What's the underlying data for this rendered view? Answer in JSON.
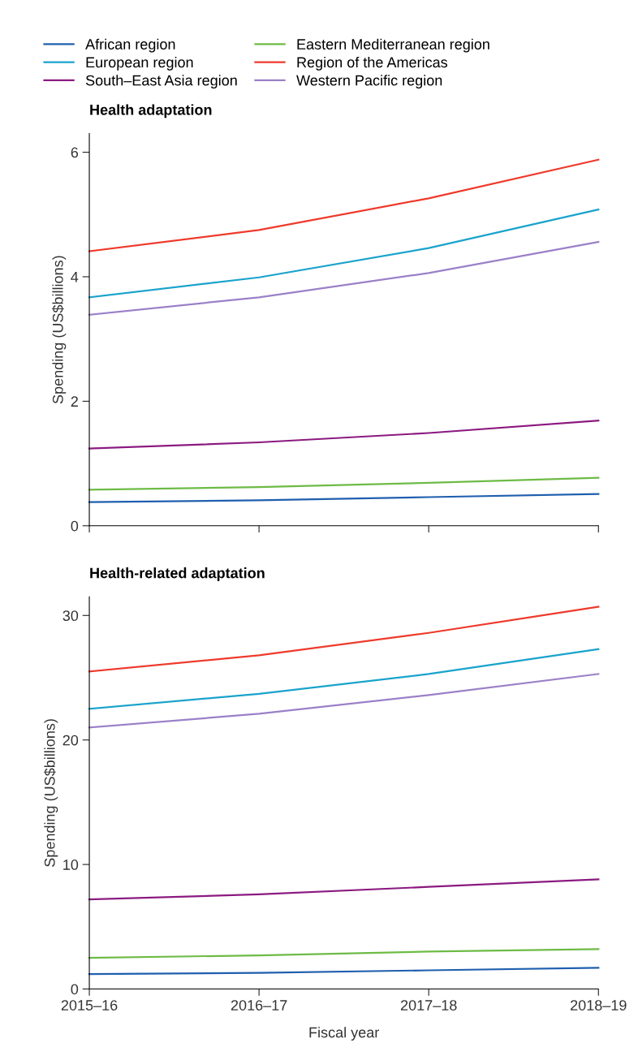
{
  "chart_data": [
    {
      "type": "line",
      "title": "Health adaptation",
      "ylabel": "Spending (US$billions)",
      "categories": [
        null,
        null,
        null,
        null
      ],
      "ylim": [
        0,
        6.3
      ],
      "yticks": [
        0,
        2,
        4,
        6
      ],
      "legend": "top",
      "grid": false,
      "series": [
        {
          "name": "African region",
          "color": "#1f5fae",
          "values": [
            0.38,
            0.41,
            0.46,
            0.51
          ]
        },
        {
          "name": "Eastern Mediterranean region",
          "color": "#6dbb45",
          "values": [
            0.58,
            0.62,
            0.69,
            0.77
          ]
        },
        {
          "name": "European region",
          "color": "#1aa3cc",
          "values": [
            3.67,
            3.99,
            4.46,
            5.08
          ]
        },
        {
          "name": "Region of the Americas",
          "color": "#ee3a2c",
          "values": [
            4.41,
            4.75,
            5.26,
            5.88
          ]
        },
        {
          "name": "South–East Asia region",
          "color": "#8b1a80",
          "values": [
            1.24,
            1.34,
            1.49,
            1.69
          ]
        },
        {
          "name": "Western Pacific region",
          "color": "#9b80c8",
          "values": [
            3.39,
            3.67,
            4.06,
            4.56
          ]
        }
      ]
    },
    {
      "type": "line",
      "title": "Health-related adaptation",
      "ylabel": "Spending (US$billions)",
      "xlabel": "Fiscal year",
      "categories": [
        "2015–16",
        "2016–17",
        "2017–18",
        "2018–19"
      ],
      "ylim": [
        0,
        31.5
      ],
      "yticks": [
        0,
        10,
        20,
        30
      ],
      "grid": false,
      "series": [
        {
          "color": "#1f5fae",
          "values": [
            1.2,
            1.3,
            1.5,
            1.7
          ]
        },
        {
          "color": "#6dbb45",
          "values": [
            2.5,
            2.7,
            3.0,
            3.2
          ]
        },
        {
          "color": "#1aa3cc",
          "values": [
            22.5,
            23.7,
            25.3,
            27.3
          ]
        },
        {
          "color": "#ee3a2c",
          "values": [
            25.5,
            26.8,
            28.6,
            30.7
          ]
        },
        {
          "color": "#8b1a80",
          "values": [
            7.2,
            7.6,
            8.2,
            8.8
          ]
        },
        {
          "color": "#9b80c8",
          "values": [
            21.0,
            22.1,
            23.6,
            25.3
          ]
        }
      ]
    }
  ]
}
